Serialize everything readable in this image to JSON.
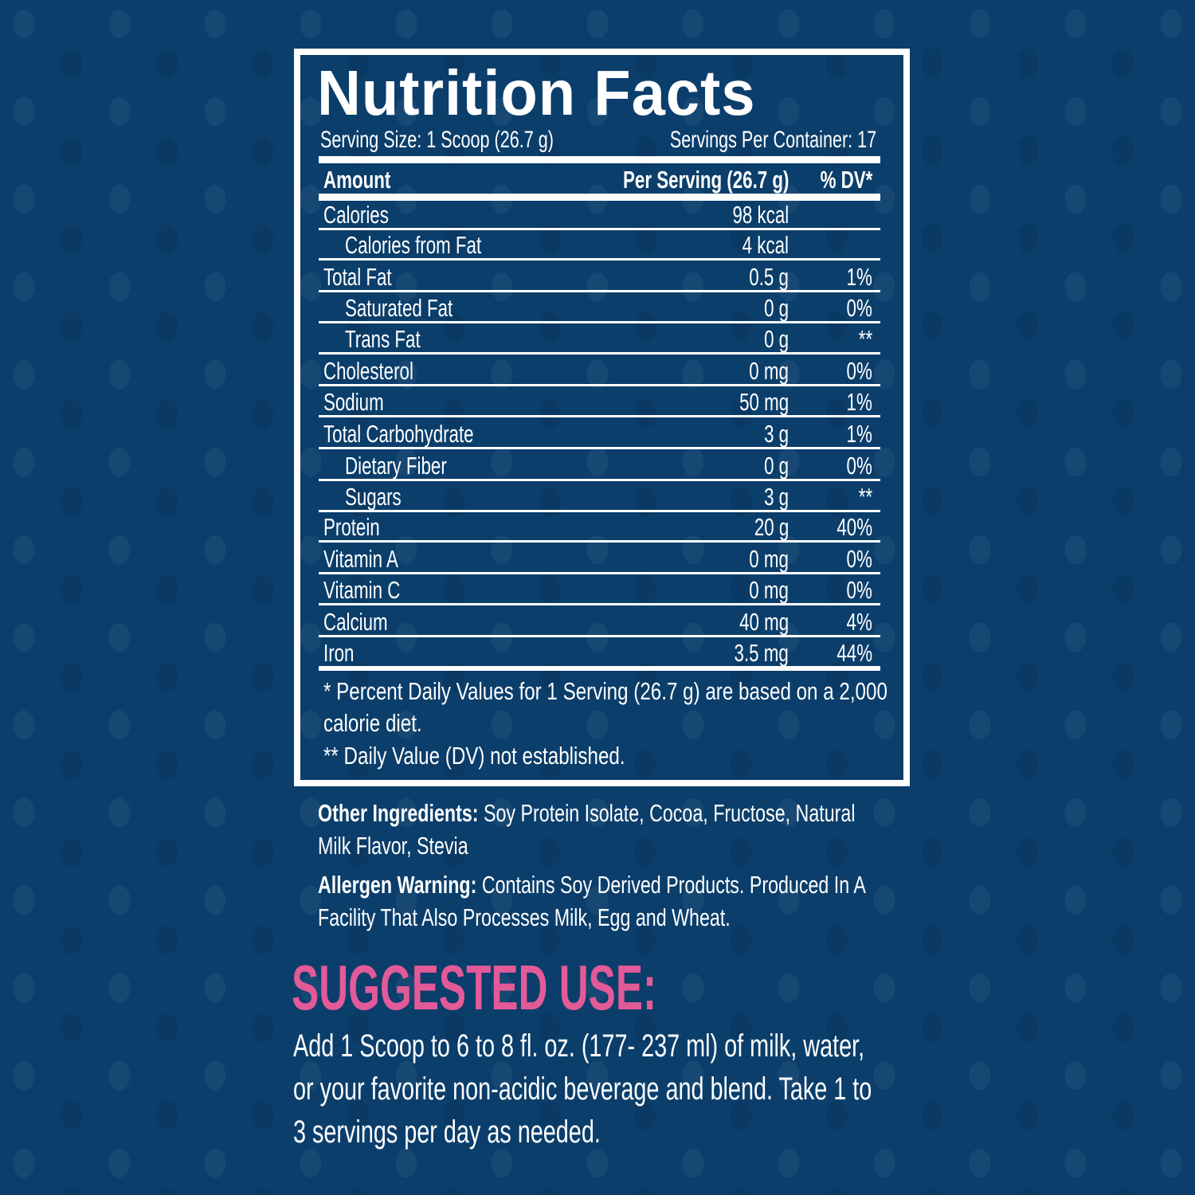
{
  "colors": {
    "background": "#0b3e6b",
    "accent": "#e35a98",
    "text": "#ffffff"
  },
  "title": "Nutrition Facts",
  "serving_size": "Serving Size: 1 Scoop (26.7 g)",
  "servings_per_container": "Servings Per Container: 17",
  "header": {
    "amount": "Amount",
    "per_serving": "Per Serving (26.7 g)",
    "dv": "% DV*"
  },
  "rows": [
    {
      "name": "Calories",
      "amount": "98 kcal",
      "dv": ""
    },
    {
      "name": "Calories from Fat",
      "amount": "4 kcal",
      "dv": "",
      "indent": true
    },
    {
      "name": "Total Fat",
      "amount": "0.5 g",
      "dv": "1%"
    },
    {
      "name": "Saturated Fat",
      "amount": "0 g",
      "dv": "0%",
      "indent": true
    },
    {
      "name": "Trans Fat",
      "amount": "0 g",
      "dv": "**",
      "indent": true
    },
    {
      "name": "Cholesterol",
      "amount": "0 mg",
      "dv": "0%"
    },
    {
      "name": "Sodium",
      "amount": "50 mg",
      "dv": "1%"
    },
    {
      "name": "Total Carbohydrate",
      "amount": "3 g",
      "dv": "1%"
    },
    {
      "name": "Dietary Fiber",
      "amount": "0 g",
      "dv": "0%",
      "indent": true
    },
    {
      "name": "Sugars",
      "amount": "3 g",
      "dv": "**",
      "indent": true
    },
    {
      "name": "Protein",
      "amount": "20 g",
      "dv": "40%"
    },
    {
      "name": "Vitamin A",
      "amount": "0 mg",
      "dv": "0%"
    },
    {
      "name": "Vitamin C",
      "amount": "0 mg",
      "dv": "0%"
    },
    {
      "name": "Calcium",
      "amount": "40 mg",
      "dv": "4%"
    },
    {
      "name": "Iron",
      "amount": "3.5 mg",
      "dv": "44%"
    }
  ],
  "footnotes": {
    "line1": "* Percent Daily Values for 1 Serving (26.7 g) are based on a 2,000",
    "line2": "calorie diet.",
    "line3": "** Daily Value (DV) not established."
  },
  "ingredients": {
    "label": "Other Ingredients:",
    "line1": "Soy Protein Isolate, Cocoa, Fructose, Natural",
    "line2": "Milk Flavor, Stevia"
  },
  "allergen": {
    "label": "Allergen Warning:",
    "line1": "Contains Soy Derived Products. Produced In A",
    "line2": "Facility That Also Processes Milk, Egg and Wheat."
  },
  "suggested_use": {
    "heading": "SUGGESTED USE:",
    "line1": "Add 1 Scoop to 6 to 8 fl. oz. (177- 237 ml) of milk, water,",
    "line2": "or your favorite non-acidic beverage and blend. Take 1 to",
    "line3": "3 servings per day as needed."
  }
}
